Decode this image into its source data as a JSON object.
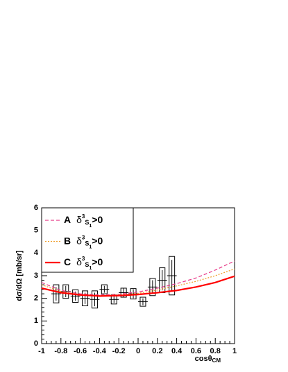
{
  "chart_data": {
    "type": "line",
    "y_label": "dσ/dΩ [mb/sr]",
    "x_label": "cosθ",
    "x_label_sub": "CM",
    "xlim": [
      -1,
      1
    ],
    "ylim": [
      0,
      6
    ],
    "xticks": [
      -1,
      -0.8,
      -0.6,
      -0.4,
      -0.2,
      0,
      0.2,
      0.4,
      0.6,
      0.8,
      1
    ],
    "yticks": [
      0,
      1,
      2,
      3,
      4,
      5,
      6
    ],
    "legend_text": {
      "symbol": "δ",
      "sup": "3",
      "main": "S",
      "sub": "1",
      "cond": ">0"
    },
    "legend": "top-left",
    "x": [
      -1,
      -0.8,
      -0.6,
      -0.4,
      -0.2,
      0,
      0.2,
      0.4,
      0.6,
      0.8,
      1
    ],
    "series": [
      {
        "name": "A",
        "color": "#e8408c",
        "dash": "dashed",
        "values": [
          2.7,
          2.35,
          2.2,
          2.15,
          2.18,
          2.28,
          2.45,
          2.65,
          2.9,
          3.25,
          3.65
        ]
      },
      {
        "name": "B",
        "color": "#f0a030",
        "dash": "dotted",
        "values": [
          2.6,
          2.3,
          2.17,
          2.12,
          2.15,
          2.22,
          2.37,
          2.55,
          2.75,
          3.0,
          3.3
        ]
      },
      {
        "name": "C",
        "color": "#ff0000",
        "dash": "solid",
        "values": [
          2.45,
          2.25,
          2.15,
          2.1,
          2.12,
          2.17,
          2.25,
          2.35,
          2.5,
          2.7,
          2.98
        ]
      }
    ],
    "points": {
      "x": [
        -0.85,
        -0.75,
        -0.65,
        -0.55,
        -0.45,
        -0.35,
        -0.25,
        -0.15,
        -0.05,
        0.05,
        0.15,
        0.25,
        0.35
      ],
      "xerr": [
        0.05,
        0.05,
        0.05,
        0.05,
        0.05,
        0.05,
        0.05,
        0.05,
        0.05,
        0.05,
        0.05,
        0.05,
        0.05
      ],
      "values": [
        2.2,
        2.3,
        2.1,
        2.0,
        1.95,
        2.4,
        1.95,
        2.25,
        2.2,
        1.85,
        2.5,
        2.8,
        3.0
      ],
      "errors": [
        0.3,
        0.25,
        0.2,
        0.25,
        0.3,
        0.15,
        0.15,
        0.2,
        0.2,
        0.15,
        0.3,
        0.45,
        0.7
      ],
      "sys": [
        0.4,
        0.3,
        0.28,
        0.33,
        0.38,
        0.2,
        0.2,
        0.2,
        0.23,
        0.2,
        0.38,
        0.55,
        0.85
      ]
    }
  }
}
